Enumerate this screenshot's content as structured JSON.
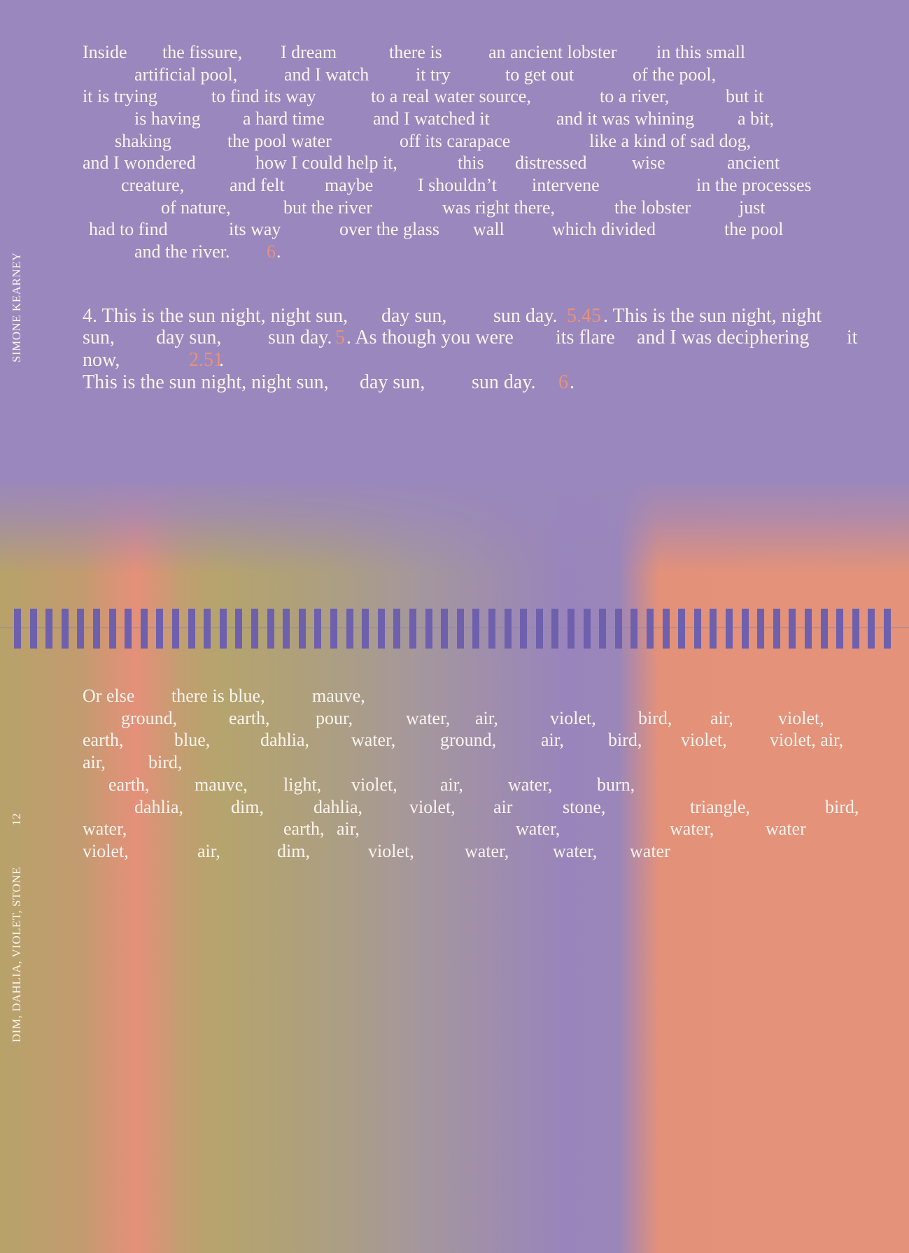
{
  "side": {
    "author": "SIMONE KEARNEY",
    "page": "12",
    "title": "DIM, DAHLIA, VIOLET, STONE"
  },
  "stanzas": [
    [
      [
        "Inside",
        "the fissure,",
        "I dream",
        "there is",
        "an ancient lobster",
        "in this small"
      ],
      [
        "artificial pool,",
        "and I watch",
        "it try",
        "to get out",
        "of the pool,"
      ],
      [
        "it is trying",
        "to find its way",
        "to a real water source,",
        "to a river,",
        "but it"
      ],
      [
        "is having",
        "a hard time",
        "and I watched it",
        "and it was whining",
        "a bit,"
      ],
      [
        "shaking",
        "the pool water",
        "off its carapace",
        "like a kind of sad dog,"
      ],
      [
        "and I wondered",
        "how I could help it,",
        "this",
        "distressed",
        "wise",
        "ancient"
      ],
      [
        "creature,",
        "and felt",
        "maybe",
        "I shouldn’t",
        "intervene",
        "in the processes"
      ],
      [
        "of nature,",
        "but the river",
        "was right there,",
        "the lobster",
        "just"
      ],
      [
        "had to find",
        "its way",
        "over the glass",
        "wall",
        "which divided",
        "the pool"
      ],
      [
        "and the river.",
        "6",
        "."
      ]
    ],
    [
      [
        "4. This is the sun night, night sun,",
        "day sun,",
        "sun day.",
        "5.45",
        ". This is the sun night, night"
      ],
      [
        "sun,",
        "day sun,",
        "sun day.",
        "5",
        ". As though you were",
        "its flare",
        "and I was deciphering",
        "it"
      ],
      [
        "now,",
        "2.51",
        "."
      ],
      [
        "This is the sun night, night sun,",
        "day sun,",
        "sun day.",
        "6",
        "."
      ]
    ],
    [
      [
        "Or else",
        "there is blue,",
        "mauve,"
      ],
      [
        "ground,",
        "earth,",
        "pour,",
        "water,",
        "air,",
        "violet,",
        "bird,",
        "air,",
        "violet,"
      ],
      [
        "earth,",
        "blue,",
        "dahlia,",
        "water,",
        "ground,",
        "air,",
        "bird,",
        "violet,",
        "violet, air,"
      ],
      [
        "air,",
        "bird,"
      ],
      [
        "earth,",
        "mauve,",
        "light,",
        "violet,",
        "air,",
        "water,",
        "burn,"
      ],
      [
        "dahlia,",
        "dim,",
        "dahlia,",
        "violet,",
        "air",
        "stone,",
        "triangle,",
        "bird,"
      ],
      [
        "water,",
        "earth,",
        "air,",
        "water,",
        "water,",
        "water"
      ],
      [
        "violet,",
        "air,",
        "dim,",
        "violet,",
        "water,",
        "water,",
        "water"
      ]
    ]
  ]
}
